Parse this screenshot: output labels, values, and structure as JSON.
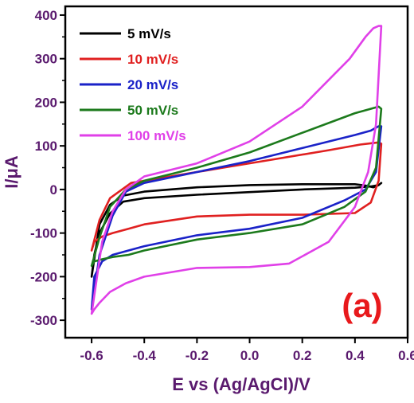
{
  "chart_data": {
    "type": "line",
    "xlabel": "E vs (Ag/AgCl)/V",
    "ylabel": "I/μA",
    "panel_label": "(a)",
    "xlim": [
      -0.7,
      0.6
    ],
    "ylim": [
      -340,
      420
    ],
    "xticks": [
      "-0.6",
      "-0.4",
      "-0.2",
      "0.0",
      "0.2",
      "0.4",
      "0.6"
    ],
    "xtick_values": [
      -0.6,
      -0.4,
      -0.2,
      0.0,
      0.2,
      0.4,
      0.6
    ],
    "yticks": [
      "400",
      "300",
      "200",
      "100",
      "0",
      "-100",
      "-200",
      "-300"
    ],
    "ytick_values": [
      400,
      300,
      200,
      100,
      0,
      -100,
      -200,
      -300
    ],
    "grid": false,
    "legend_position": "top-left",
    "colors": {
      "axis": "#000000",
      "tick_label": "#5a1a6e",
      "panel_label": "#e8191c"
    },
    "series": [
      {
        "name": "5 mV/s",
        "color": "#000000",
        "x": [
          -0.6,
          -0.59,
          -0.57,
          -0.53,
          -0.48,
          -0.4,
          -0.2,
          0.0,
          0.2,
          0.4,
          0.46,
          0.49,
          0.5,
          0.49,
          0.47,
          0.44,
          0.4,
          0.2,
          0.0,
          -0.2,
          -0.4,
          -0.48,
          -0.53,
          -0.57,
          -0.6
        ],
        "y": [
          -200,
          -150,
          -100,
          -55,
          -28,
          -20,
          -12,
          -6,
          0,
          4,
          7,
          10,
          15,
          10,
          5,
          9,
          12,
          12,
          10,
          5,
          -5,
          -14,
          -35,
          -80,
          -200
        ]
      },
      {
        "name": "10 mV/s",
        "color": "#e02020",
        "x": [
          -0.6,
          -0.59,
          -0.56,
          -0.52,
          -0.46,
          -0.4,
          -0.2,
          0.0,
          0.2,
          0.4,
          0.46,
          0.49,
          0.5,
          0.49,
          0.46,
          0.42,
          0.3,
          0.1,
          -0.1,
          -0.3,
          -0.45,
          -0.53,
          -0.57,
          -0.6
        ],
        "y": [
          -140,
          -120,
          -108,
          -100,
          -90,
          -80,
          -62,
          -58,
          -58,
          -54,
          -30,
          20,
          105,
          108,
          106,
          103,
          90,
          70,
          50,
          30,
          15,
          -20,
          -70,
          -140
        ]
      },
      {
        "name": "20 mV/s",
        "color": "#1a22c8",
        "x": [
          -0.6,
          -0.59,
          -0.56,
          -0.52,
          -0.46,
          -0.4,
          -0.2,
          0.0,
          0.2,
          0.36,
          0.44,
          0.48,
          0.5,
          0.49,
          0.46,
          0.4,
          0.2,
          0.0,
          -0.2,
          -0.4,
          -0.47,
          -0.52,
          -0.57,
          -0.6
        ],
        "y": [
          -275,
          -200,
          -165,
          -150,
          -140,
          -130,
          -105,
          -90,
          -65,
          -25,
          0,
          40,
          145,
          145,
          135,
          125,
          95,
          65,
          40,
          15,
          -5,
          -60,
          -150,
          -275
        ]
      },
      {
        "name": "50 mV/s",
        "color": "#1c7a1c",
        "x": [
          -0.6,
          -0.59,
          -0.56,
          -0.52,
          -0.46,
          -0.4,
          -0.2,
          0.0,
          0.2,
          0.36,
          0.44,
          0.48,
          0.5,
          0.49,
          0.46,
          0.4,
          0.2,
          0.0,
          -0.2,
          -0.4,
          -0.47,
          -0.53,
          -0.57,
          -0.6
        ],
        "y": [
          -175,
          -165,
          -160,
          -155,
          -150,
          -140,
          -115,
          -100,
          -80,
          -40,
          -5,
          50,
          185,
          190,
          185,
          175,
          130,
          85,
          50,
          20,
          0,
          -40,
          -110,
          -175
        ]
      },
      {
        "name": "100 mV/s",
        "color": "#e040e8",
        "x": [
          -0.6,
          -0.59,
          -0.57,
          -0.53,
          -0.47,
          -0.4,
          -0.2,
          0.0,
          0.15,
          0.3,
          0.4,
          0.45,
          0.48,
          0.5,
          0.49,
          0.47,
          0.44,
          0.38,
          0.2,
          0.0,
          -0.2,
          -0.4,
          -0.47,
          -0.52,
          -0.56,
          -0.6
        ],
        "y": [
          -285,
          -275,
          -260,
          -235,
          -215,
          -200,
          -180,
          -178,
          -170,
          -120,
          -40,
          40,
          150,
          375,
          375,
          370,
          350,
          300,
          190,
          110,
          60,
          30,
          0,
          -50,
          -120,
          -285
        ]
      }
    ]
  }
}
